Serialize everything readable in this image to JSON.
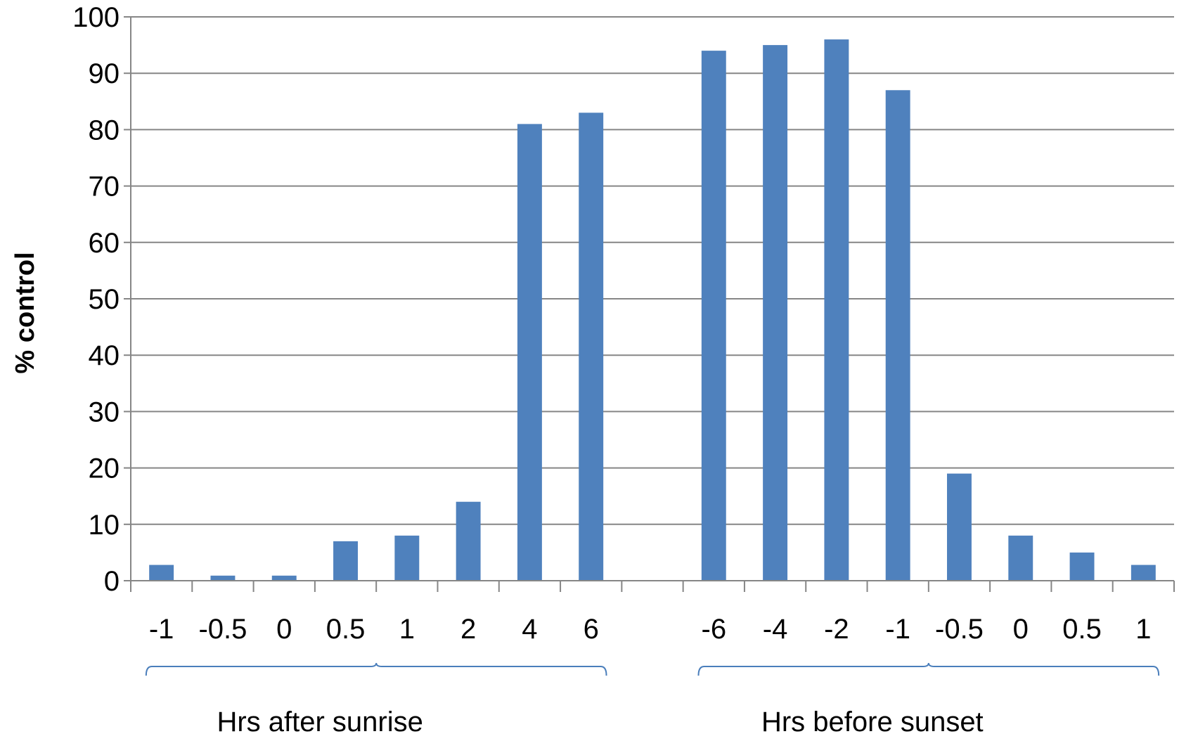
{
  "chart_data": {
    "type": "bar",
    "title": "",
    "ylabel": "% control",
    "ylim": [
      0,
      100
    ],
    "yticks": [
      "0",
      "10",
      "20",
      "30",
      "40",
      "50",
      "60",
      "70",
      "80",
      "90",
      "100"
    ],
    "grid": true,
    "categories": [
      "-1",
      "-0.5",
      "0",
      "0.5",
      "1",
      "2",
      "4",
      "6",
      "",
      "-6",
      "-4",
      "-2",
      "-1",
      "-0.5",
      "0",
      "0.5",
      "1"
    ],
    "values": [
      2.8,
      0.9,
      0.9,
      7,
      8,
      14,
      81,
      83,
      null,
      94,
      95,
      96,
      87,
      19,
      8,
      5,
      2.8
    ],
    "groups": [
      {
        "label": "Hrs after sunrise",
        "from": 0,
        "to": 7
      },
      {
        "label": "Hrs before sunset",
        "from": 9,
        "to": 16
      }
    ],
    "colors": {
      "bar": "#4f81bd",
      "grid": "#868686",
      "axis": "#868686",
      "bracket": "#4a7ebb"
    }
  }
}
